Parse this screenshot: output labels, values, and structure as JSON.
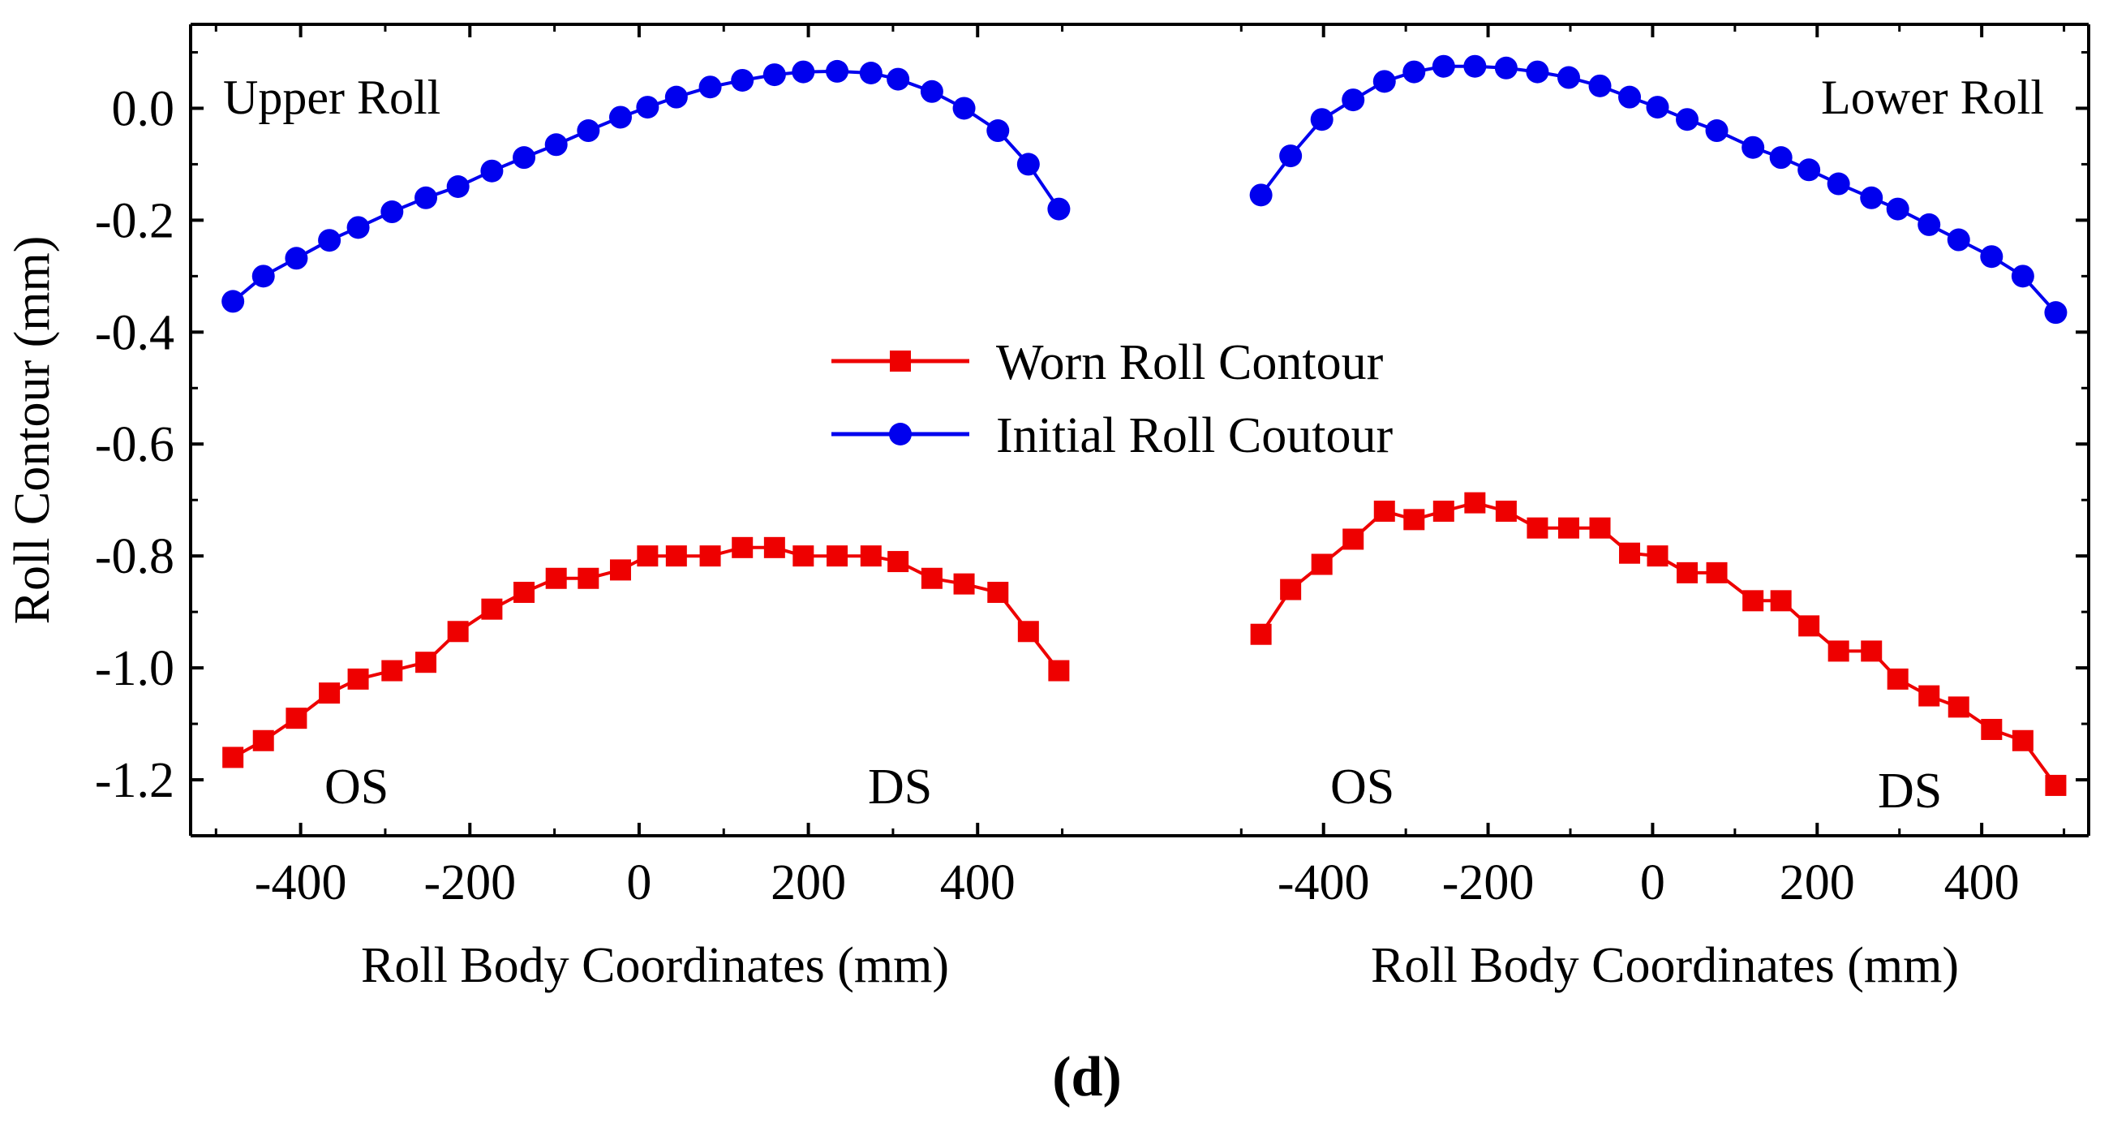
{
  "colors": {
    "worn": "#ee0000",
    "initial": "#0000ee",
    "axis": "#000000"
  },
  "chart_data": {
    "type": "line",
    "caption": "(d)",
    "ylabel": "Roll Contour (mm)",
    "ylim": [
      -1.3,
      0.15
    ],
    "yticks": [
      0.0,
      -0.2,
      -0.4,
      -0.6,
      -0.8,
      -1.0,
      -1.2
    ],
    "ytick_labels": [
      "0.0",
      "-0.2",
      "-0.4",
      "-0.6",
      "-0.8",
      "-1.0",
      "-1.2"
    ],
    "legend": {
      "position": "center",
      "entries": [
        {
          "name": "Worn Roll Contour",
          "series": "worn",
          "marker": "square"
        },
        {
          "name": "Initial Roll Coutour",
          "series": "initial",
          "marker": "circle"
        }
      ]
    },
    "panels": [
      {
        "id": "upper",
        "xlabel": "Roll Body Coordinates (mm)",
        "xlim": [
          -530,
          510
        ],
        "xticks": [
          -400,
          -200,
          0,
          200,
          400
        ],
        "xtick_labels": [
          "-400",
          "-200",
          "0",
          "200",
          "400"
        ],
        "title": "Upper Roll",
        "side_labels": [
          "OS",
          "DS"
        ],
        "series": {
          "initial": {
            "x": [
              -480,
              -444,
              -405,
              -366,
              -332,
              -292,
              -252,
              -214,
              -174,
              -136,
              -98,
              -60,
              -22,
              10,
              44,
              84,
              122,
              160,
              194,
              234,
              274,
              306,
              346,
              384,
              424,
              460,
              496
            ],
            "y": [
              -0.345,
              -0.3,
              -0.268,
              -0.236,
              -0.213,
              -0.185,
              -0.16,
              -0.14,
              -0.112,
              -0.088,
              -0.065,
              -0.04,
              -0.016,
              0.002,
              0.02,
              0.038,
              0.05,
              0.06,
              0.065,
              0.066,
              0.063,
              0.052,
              0.03,
              0.0,
              -0.04,
              -0.1,
              -0.18
            ]
          },
          "worn": {
            "x": [
              -480,
              -444,
              -405,
              -366,
              -332,
              -292,
              -252,
              -214,
              -174,
              -136,
              -98,
              -60,
              -22,
              10,
              44,
              84,
              122,
              160,
              194,
              234,
              274,
              306,
              346,
              384,
              424,
              460,
              496
            ],
            "y": [
              -1.16,
              -1.13,
              -1.09,
              -1.045,
              -1.02,
              -1.005,
              -0.99,
              -0.935,
              -0.895,
              -0.865,
              -0.84,
              -0.84,
              -0.825,
              -0.8,
              -0.8,
              -0.8,
              -0.785,
              -0.785,
              -0.8,
              -0.8,
              -0.8,
              -0.81,
              -0.84,
              -0.85,
              -0.865,
              -0.935,
              -1.005
            ]
          }
        }
      },
      {
        "id": "lower",
        "xlabel": "Roll Body Coordinates (mm)",
        "xlim": [
          -520,
          530
        ],
        "xticks": [
          -400,
          -200,
          0,
          200,
          400
        ],
        "xtick_labels": [
          "-400",
          "-200",
          "0",
          "200",
          "400"
        ],
        "title": "Lower Roll",
        "side_labels": [
          "OS",
          "DS"
        ],
        "series": {
          "initial": {
            "x": [
              -476,
              -440,
              -402,
              -364,
              -326,
              -290,
              -254,
              -216,
              -178,
              -140,
              -102,
              -64,
              -28,
              6,
              42,
              78,
              122,
              156,
              190,
              226,
              266,
              298,
              336,
              372,
              412,
              450,
              490
            ],
            "y": [
              -0.155,
              -0.085,
              -0.02,
              0.015,
              0.048,
              0.065,
              0.075,
              0.075,
              0.072,
              0.065,
              0.055,
              0.04,
              0.02,
              0.002,
              -0.02,
              -0.04,
              -0.07,
              -0.088,
              -0.11,
              -0.135,
              -0.16,
              -0.18,
              -0.208,
              -0.235,
              -0.265,
              -0.3,
              -0.365
            ]
          },
          "worn": {
            "x": [
              -476,
              -440,
              -402,
              -364,
              -326,
              -290,
              -254,
              -216,
              -178,
              -140,
              -102,
              -64,
              -28,
              6,
              42,
              78,
              122,
              156,
              190,
              226,
              266,
              298,
              336,
              372,
              412,
              450,
              490
            ],
            "y": [
              -0.94,
              -0.86,
              -0.815,
              -0.77,
              -0.72,
              -0.735,
              -0.72,
              -0.705,
              -0.72,
              -0.75,
              -0.75,
              -0.75,
              -0.795,
              -0.8,
              -0.83,
              -0.83,
              -0.88,
              -0.88,
              -0.925,
              -0.97,
              -0.97,
              -1.02,
              -1.05,
              -1.07,
              -1.11,
              -1.13,
              -1.21
            ]
          }
        }
      }
    ]
  }
}
